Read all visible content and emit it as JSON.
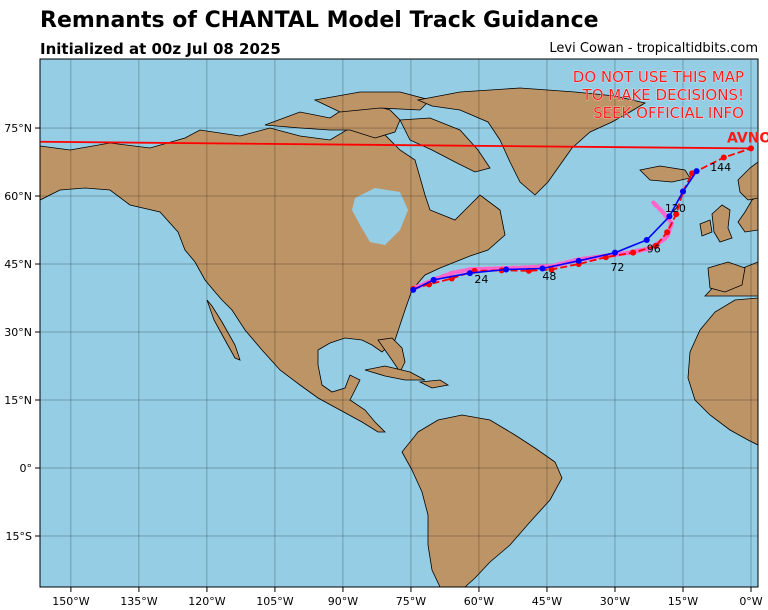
{
  "header": {
    "title": "Remnants of CHANTAL Model Track Guidance",
    "subtitle": "Initialized at 00z Jul 08 2025",
    "credit": "Levi Cowan - tropicaltidbits.com"
  },
  "warning": [
    "DO NOT USE THIS MAP",
    "TO MAKE DECISIONS!",
    "SEEK OFFICIAL INFO"
  ],
  "axes": {
    "lon_labels": [
      "150°W",
      "135°W",
      "120°W",
      "105°W",
      "90°W",
      "75°W",
      "60°W",
      "45°W",
      "30°W",
      "15°W",
      "0°W"
    ],
    "lat_labels": [
      "75°N",
      "60°N",
      "45°N",
      "30°N",
      "15°N",
      "0°",
      "15°S"
    ]
  },
  "colors": {
    "ocean": "#94cde4",
    "land": "#bd9466",
    "red_track": "#ff0000",
    "blue_track": "#0000ff",
    "pink_track": "#ff66cc"
  },
  "tracks": {
    "red_label": "AVNO",
    "red": [
      [
        -74.5,
        39.5
      ],
      [
        -71,
        40.5
      ],
      [
        -66,
        41.8
      ],
      [
        -61,
        43.5
      ],
      [
        -55,
        43.6
      ],
      [
        -49,
        43.5
      ],
      [
        -44,
        43.8
      ],
      [
        -38,
        45
      ],
      [
        -32,
        46.5
      ],
      [
        -26,
        47.5
      ],
      [
        -21,
        49
      ],
      [
        -18.5,
        52
      ],
      [
        -16.5,
        56
      ],
      [
        -15,
        61
      ],
      [
        -13,
        65
      ],
      [
        -6,
        68.5
      ],
      [
        0,
        70.5
      ]
    ],
    "blue": [
      [
        -74.5,
        39.3
      ],
      [
        -70,
        41.5
      ],
      [
        -62,
        43
      ],
      [
        -54,
        43.8
      ],
      [
        -46,
        44
      ],
      [
        -38,
        45.7
      ],
      [
        -30,
        47.5
      ],
      [
        -23,
        50.3
      ],
      [
        -18,
        55.5
      ],
      [
        -15,
        61
      ],
      [
        -12,
        65.5
      ]
    ],
    "pink": [
      [
        -74,
        39.8
      ],
      [
        -70,
        41.5
      ],
      [
        -66,
        43
      ],
      [
        -62,
        43.8
      ],
      [
        -56,
        44
      ],
      [
        -50,
        44.2
      ],
      [
        -44,
        44.5
      ],
      [
        -38,
        46
      ],
      [
        -32,
        46.8
      ],
      [
        -27,
        47.5
      ],
      [
        -22,
        48.5
      ],
      [
        -18.5,
        51
      ],
      [
        -17.5,
        54
      ],
      [
        -19.5,
        56.5
      ],
      [
        -21.5,
        58.5
      ]
    ],
    "long_line": [
      [
        -160,
        72
      ],
      [
        0,
        70.5
      ]
    ],
    "hour_labels": [
      {
        "text": "24",
        "lon": -61,
        "lat": 40.8
      },
      {
        "text": "48",
        "lon": -46,
        "lat": 41.5
      },
      {
        "text": "72",
        "lon": -31,
        "lat": 43.5
      },
      {
        "text": "96",
        "lon": -23,
        "lat": 47.5
      },
      {
        "text": "120",
        "lon": -19,
        "lat": 56.5
      },
      {
        "text": "144",
        "lon": -9,
        "lat": 65.5
      }
    ]
  }
}
